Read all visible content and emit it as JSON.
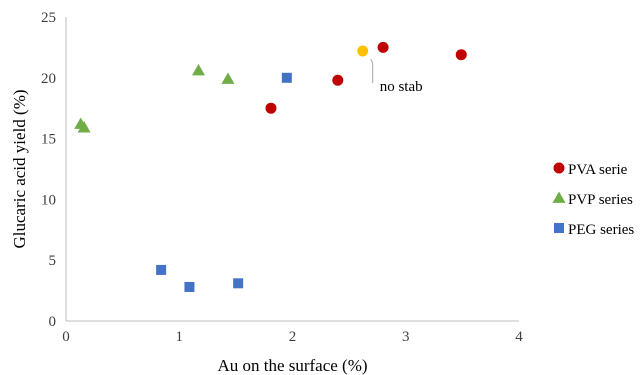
{
  "chart_data": {
    "type": "scatter",
    "xlabel": "Au on the surface (%)",
    "ylabel": "Glucaric acid yield (%)",
    "xlim": [
      0,
      4
    ],
    "ylim": [
      0,
      25
    ],
    "xticks": [
      0,
      1,
      2,
      3,
      4
    ],
    "yticks": [
      0,
      5,
      10,
      15,
      20,
      25
    ],
    "grid": false,
    "legend_position": "right",
    "series": [
      {
        "name": "PVA serie",
        "marker": "circle",
        "color": "#C00000",
        "points": [
          {
            "x": 1.81,
            "y": 17.5
          },
          {
            "x": 2.4,
            "y": 19.8
          },
          {
            "x": 2.8,
            "y": 22.5
          },
          {
            "x": 3.49,
            "y": 21.9
          }
        ]
      },
      {
        "name": "PVP series",
        "marker": "triangle",
        "color": "#70AD47",
        "points": [
          {
            "x": 0.13,
            "y": 16.2
          },
          {
            "x": 0.16,
            "y": 15.9
          },
          {
            "x": 1.17,
            "y": 20.6
          },
          {
            "x": 1.43,
            "y": 19.9
          }
        ]
      },
      {
        "name": "PEG series",
        "marker": "square",
        "color": "#4472C4",
        "points": [
          {
            "x": 0.84,
            "y": 4.2
          },
          {
            "x": 1.09,
            "y": 2.8
          },
          {
            "x": 1.52,
            "y": 3.1
          },
          {
            "x": 1.95,
            "y": 20.0
          }
        ]
      },
      {
        "marker": "circle",
        "color": "#FFC000",
        "points": [
          {
            "x": 2.62,
            "y": 22.2
          }
        ]
      }
    ],
    "annotations": [
      {
        "text": "no stab",
        "x": 2.62,
        "y": 22.2
      }
    ]
  }
}
